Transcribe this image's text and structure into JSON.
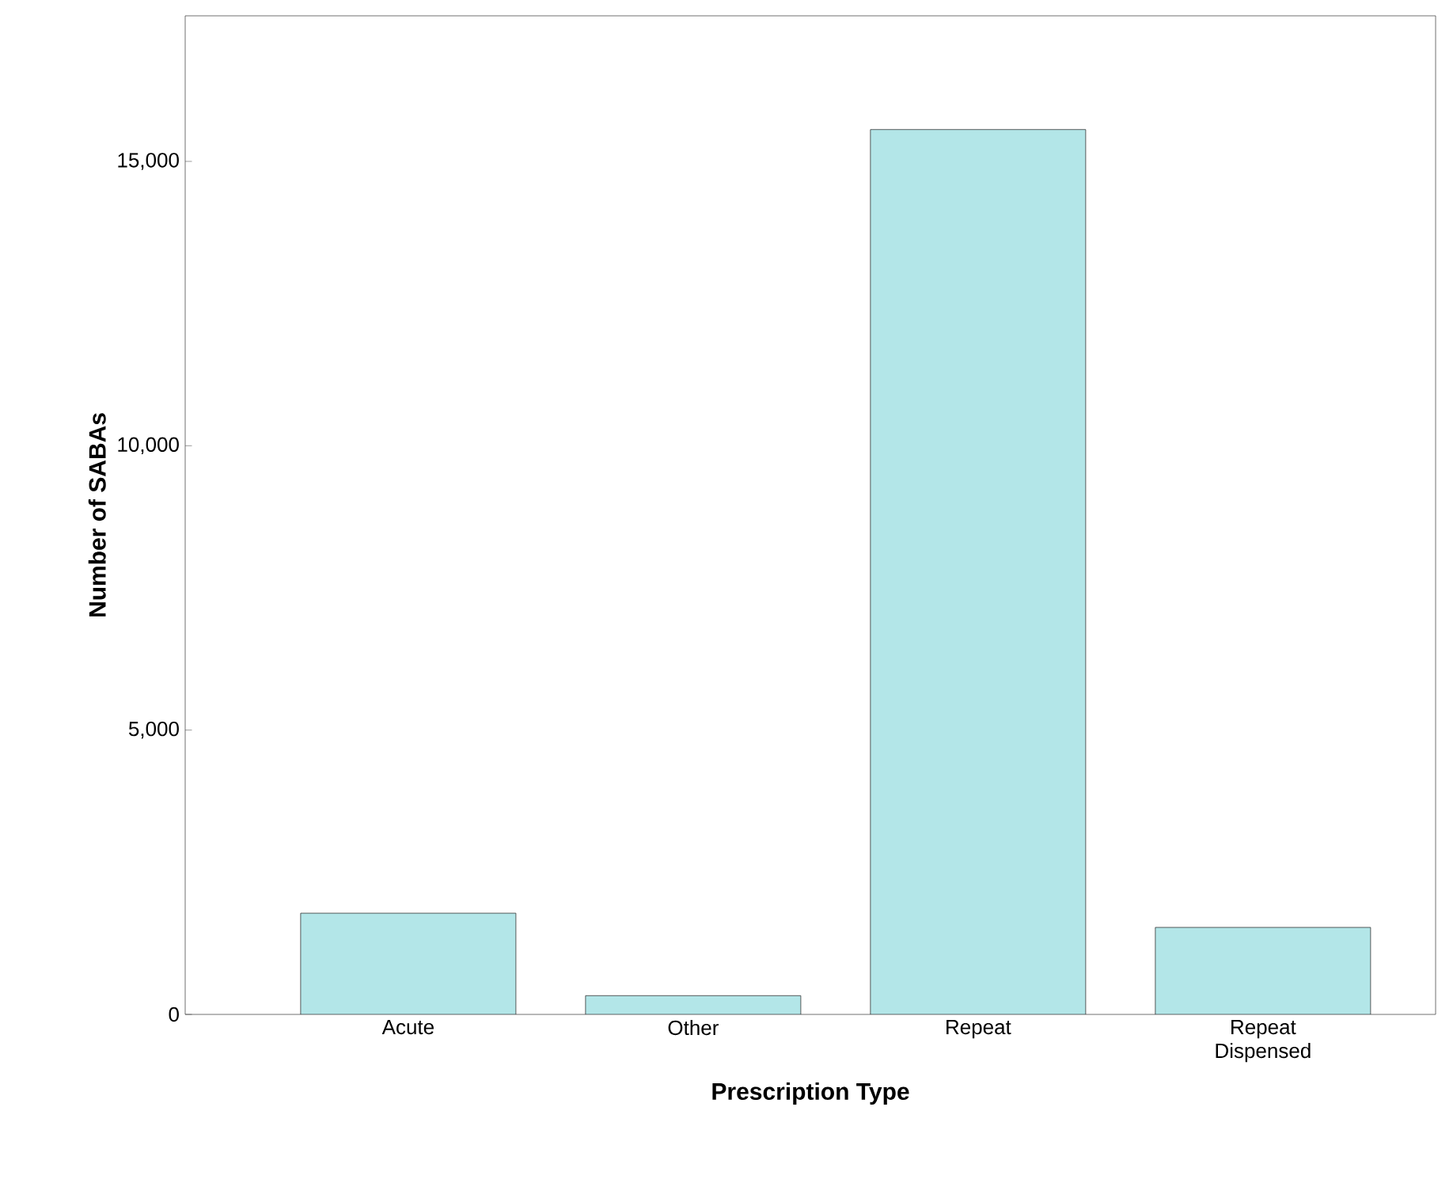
{
  "chart_data": {
    "type": "bar",
    "xlabel": "Prescription Type",
    "ylabel": "Number of SABAs",
    "categories": [
      "Acute",
      "Other",
      "Repeat",
      "Repeat Dispensed"
    ],
    "values": [
      1780,
      330,
      15560,
      1530
    ],
    "color": "#b3e6e8",
    "ylim": [
      0,
      17560
    ],
    "yticks": [
      0,
      {
        "value": 5000,
        "label": "5,000"
      },
      {
        "value": 10000,
        "label": "10,000"
      },
      {
        "value": 15000,
        "label": "15,000"
      }
    ],
    "grid": false
  }
}
